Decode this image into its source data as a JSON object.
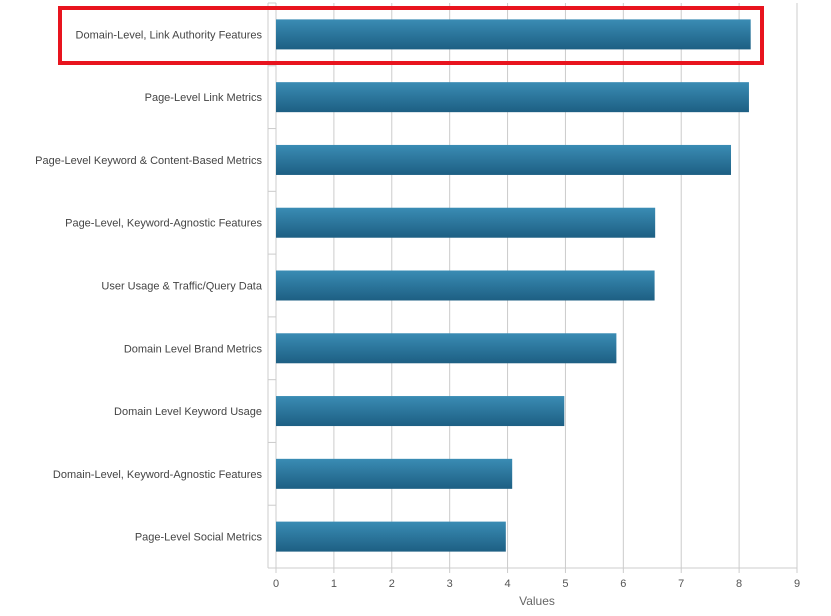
{
  "chart_data": {
    "type": "bar",
    "orientation": "horizontal",
    "categories": [
      "Domain-Level, Link Authority Features",
      "Page-Level Link Metrics",
      "Page-Level Keyword & Content-Based Metrics",
      "Page-Level, Keyword-Agnostic Features",
      "User Usage & Traffic/Query Data",
      "Domain Level Brand Metrics",
      "Domain Level Keyword Usage",
      "Domain-Level, Keyword-Agnostic Features",
      "Page-Level Social Metrics"
    ],
    "values": [
      8.2,
      8.17,
      7.86,
      6.55,
      6.54,
      5.88,
      4.98,
      4.08,
      3.97
    ],
    "xlabel": "Values",
    "ylabel": "",
    "xlim": [
      0,
      9
    ],
    "xticks": [
      "0",
      "1",
      "2",
      "3",
      "4",
      "5",
      "6",
      "7",
      "8",
      "9"
    ],
    "grid": "vertical",
    "highlighted_category": "Domain-Level, Link Authority Features",
    "colors": {
      "bar_top": "#3a8cb4",
      "bar_bottom": "#1d5f83",
      "grid": "#cccccc",
      "highlight_border": "#e8141e"
    }
  }
}
